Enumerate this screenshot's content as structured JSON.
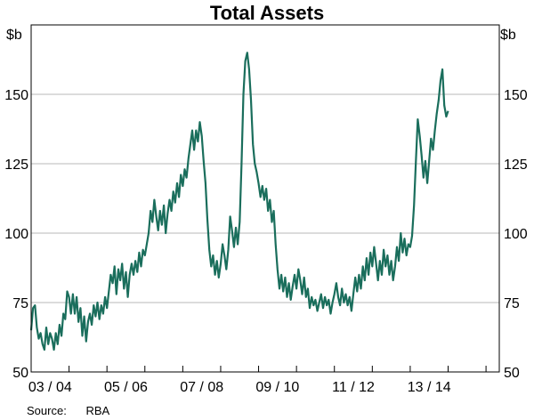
{
  "chart_data": {
    "type": "line",
    "title": "Total Assets",
    "y_unit_left": "$b",
    "y_unit_right": "$b",
    "ylim": [
      50,
      175
    ],
    "yticks": [
      50,
      75,
      100,
      125,
      150
    ],
    "grid": true,
    "x_labels": [
      {
        "label": "03 / 04",
        "at": 2003.5
      },
      {
        "label": "05 / 06",
        "at": 2005.5
      },
      {
        "label": "07 / 08",
        "at": 2007.5
      },
      {
        "label": "09 / 10",
        "at": 2009.5
      },
      {
        "label": "11 / 12",
        "at": 2011.5
      },
      {
        "label": "13 / 14",
        "at": 2013.5
      }
    ],
    "x_minor_ticks": [
      2003,
      2004,
      2005,
      2006,
      2007,
      2008,
      2009,
      2010,
      2011,
      2012,
      2013,
      2014,
      2015
    ],
    "xlim": [
      2003,
      2015.35
    ],
    "series": [
      {
        "color": "#1a6e5c",
        "points": [
          [
            2003.0,
            65
          ],
          [
            2003.05,
            73
          ],
          [
            2003.1,
            74
          ],
          [
            2003.15,
            66
          ],
          [
            2003.2,
            62
          ],
          [
            2003.25,
            64
          ],
          [
            2003.3,
            60
          ],
          [
            2003.35,
            58
          ],
          [
            2003.4,
            66
          ],
          [
            2003.45,
            60
          ],
          [
            2003.5,
            64
          ],
          [
            2003.55,
            62
          ],
          [
            2003.6,
            58
          ],
          [
            2003.65,
            64
          ],
          [
            2003.7,
            60
          ],
          [
            2003.75,
            67
          ],
          [
            2003.8,
            63
          ],
          [
            2003.85,
            71
          ],
          [
            2003.9,
            69
          ],
          [
            2003.95,
            79
          ],
          [
            2004.0,
            77
          ],
          [
            2004.05,
            71
          ],
          [
            2004.1,
            78
          ],
          [
            2004.15,
            71
          ],
          [
            2004.2,
            77
          ],
          [
            2004.25,
            68
          ],
          [
            2004.3,
            73
          ],
          [
            2004.35,
            63
          ],
          [
            2004.4,
            70
          ],
          [
            2004.45,
            61
          ],
          [
            2004.5,
            68
          ],
          [
            2004.55,
            71
          ],
          [
            2004.6,
            67
          ],
          [
            2004.65,
            74
          ],
          [
            2004.7,
            70
          ],
          [
            2004.75,
            75
          ],
          [
            2004.8,
            69
          ],
          [
            2004.85,
            74
          ],
          [
            2004.9,
            71
          ],
          [
            2004.95,
            77
          ],
          [
            2005.0,
            73
          ],
          [
            2005.05,
            79
          ],
          [
            2005.1,
            85
          ],
          [
            2005.15,
            82
          ],
          [
            2005.2,
            88
          ],
          [
            2005.25,
            78
          ],
          [
            2005.3,
            87
          ],
          [
            2005.35,
            83
          ],
          [
            2005.4,
            89
          ],
          [
            2005.45,
            80
          ],
          [
            2005.5,
            86
          ],
          [
            2005.55,
            77
          ],
          [
            2005.6,
            85
          ],
          [
            2005.65,
            89
          ],
          [
            2005.7,
            85
          ],
          [
            2005.75,
            90
          ],
          [
            2005.8,
            86
          ],
          [
            2005.85,
            93
          ],
          [
            2005.9,
            88
          ],
          [
            2005.95,
            94
          ],
          [
            2006.0,
            92
          ],
          [
            2006.05,
            96
          ],
          [
            2006.1,
            100
          ],
          [
            2006.15,
            108
          ],
          [
            2006.2,
            104
          ],
          [
            2006.25,
            112
          ],
          [
            2006.3,
            106
          ],
          [
            2006.35,
            101
          ],
          [
            2006.4,
            108
          ],
          [
            2006.45,
            103
          ],
          [
            2006.5,
            110
          ],
          [
            2006.55,
            100
          ],
          [
            2006.6,
            107
          ],
          [
            2006.65,
            112
          ],
          [
            2006.7,
            108
          ],
          [
            2006.75,
            115
          ],
          [
            2006.8,
            111
          ],
          [
            2006.85,
            118
          ],
          [
            2006.9,
            113
          ],
          [
            2006.95,
            121
          ],
          [
            2007.0,
            117
          ],
          [
            2007.05,
            123
          ],
          [
            2007.1,
            120
          ],
          [
            2007.15,
            127
          ],
          [
            2007.2,
            132
          ],
          [
            2007.25,
            137
          ],
          [
            2007.3,
            130
          ],
          [
            2007.35,
            137
          ],
          [
            2007.4,
            133
          ],
          [
            2007.45,
            140
          ],
          [
            2007.5,
            135
          ],
          [
            2007.55,
            126
          ],
          [
            2007.6,
            118
          ],
          [
            2007.65,
            105
          ],
          [
            2007.7,
            94
          ],
          [
            2007.75,
            88
          ],
          [
            2007.8,
            92
          ],
          [
            2007.85,
            85
          ],
          [
            2007.9,
            90
          ],
          [
            2007.95,
            84
          ],
          [
            2008.0,
            89
          ],
          [
            2008.05,
            96
          ],
          [
            2008.1,
            92
          ],
          [
            2008.15,
            87
          ],
          [
            2008.2,
            94
          ],
          [
            2008.25,
            106
          ],
          [
            2008.3,
            101
          ],
          [
            2008.35,
            95
          ],
          [
            2008.4,
            102
          ],
          [
            2008.45,
            96
          ],
          [
            2008.5,
            104
          ],
          [
            2008.55,
            125
          ],
          [
            2008.6,
            150
          ],
          [
            2008.65,
            162
          ],
          [
            2008.7,
            165
          ],
          [
            2008.75,
            159
          ],
          [
            2008.8,
            148
          ],
          [
            2008.85,
            132
          ],
          [
            2008.9,
            125
          ],
          [
            2008.95,
            122
          ],
          [
            2009.0,
            118
          ],
          [
            2009.05,
            113
          ],
          [
            2009.1,
            117
          ],
          [
            2009.15,
            112
          ],
          [
            2009.2,
            116
          ],
          [
            2009.25,
            108
          ],
          [
            2009.3,
            112
          ],
          [
            2009.35,
            104
          ],
          [
            2009.4,
            108
          ],
          [
            2009.45,
            96
          ],
          [
            2009.5,
            87
          ],
          [
            2009.55,
            80
          ],
          [
            2009.6,
            85
          ],
          [
            2009.65,
            79
          ],
          [
            2009.7,
            84
          ],
          [
            2009.75,
            77
          ],
          [
            2009.8,
            82
          ],
          [
            2009.85,
            76
          ],
          [
            2009.9,
            81
          ],
          [
            2009.95,
            85
          ],
          [
            2010.0,
            80
          ],
          [
            2010.05,
            87
          ],
          [
            2010.1,
            83
          ],
          [
            2010.15,
            78
          ],
          [
            2010.2,
            84
          ],
          [
            2010.25,
            77
          ],
          [
            2010.3,
            80
          ],
          [
            2010.35,
            73
          ],
          [
            2010.4,
            77
          ],
          [
            2010.45,
            74
          ],
          [
            2010.5,
            76
          ],
          [
            2010.55,
            72
          ],
          [
            2010.6,
            75
          ],
          [
            2010.65,
            78
          ],
          [
            2010.7,
            73
          ],
          [
            2010.75,
            77
          ],
          [
            2010.8,
            74
          ],
          [
            2010.85,
            76
          ],
          [
            2010.9,
            71
          ],
          [
            2010.95,
            75
          ],
          [
            2011.0,
            78
          ],
          [
            2011.05,
            82
          ],
          [
            2011.1,
            77
          ],
          [
            2011.15,
            74
          ],
          [
            2011.2,
            80
          ],
          [
            2011.25,
            75
          ],
          [
            2011.3,
            78
          ],
          [
            2011.35,
            74
          ],
          [
            2011.4,
            77
          ],
          [
            2011.45,
            72
          ],
          [
            2011.5,
            78
          ],
          [
            2011.55,
            84
          ],
          [
            2011.6,
            79
          ],
          [
            2011.65,
            85
          ],
          [
            2011.7,
            80
          ],
          [
            2011.75,
            88
          ],
          [
            2011.8,
            83
          ],
          [
            2011.85,
            91
          ],
          [
            2011.9,
            85
          ],
          [
            2011.95,
            93
          ],
          [
            2012.0,
            88
          ],
          [
            2012.05,
            95
          ],
          [
            2012.1,
            89
          ],
          [
            2012.15,
            83
          ],
          [
            2012.2,
            90
          ],
          [
            2012.25,
            85
          ],
          [
            2012.3,
            94
          ],
          [
            2012.35,
            88
          ],
          [
            2012.4,
            92
          ],
          [
            2012.45,
            85
          ],
          [
            2012.5,
            90
          ],
          [
            2012.55,
            83
          ],
          [
            2012.6,
            88
          ],
          [
            2012.65,
            95
          ],
          [
            2012.7,
            90
          ],
          [
            2012.75,
            100
          ],
          [
            2012.8,
            93
          ],
          [
            2012.85,
            98
          ],
          [
            2012.9,
            92
          ],
          [
            2012.95,
            96
          ],
          [
            2013.0,
            95
          ],
          [
            2013.05,
            99
          ],
          [
            2013.1,
            110
          ],
          [
            2013.15,
            126
          ],
          [
            2013.2,
            141
          ],
          [
            2013.25,
            135
          ],
          [
            2013.3,
            128
          ],
          [
            2013.35,
            120
          ],
          [
            2013.4,
            126
          ],
          [
            2013.45,
            118
          ],
          [
            2013.5,
            126
          ],
          [
            2013.55,
            134
          ],
          [
            2013.6,
            130
          ],
          [
            2013.65,
            137
          ],
          [
            2013.7,
            143
          ],
          [
            2013.75,
            148
          ],
          [
            2013.8,
            155
          ],
          [
            2013.85,
            159
          ],
          [
            2013.9,
            146
          ],
          [
            2013.95,
            142
          ],
          [
            2014.0,
            144
          ]
        ]
      }
    ]
  },
  "footer": {
    "source_label": "Source:",
    "source_value": "RBA"
  }
}
